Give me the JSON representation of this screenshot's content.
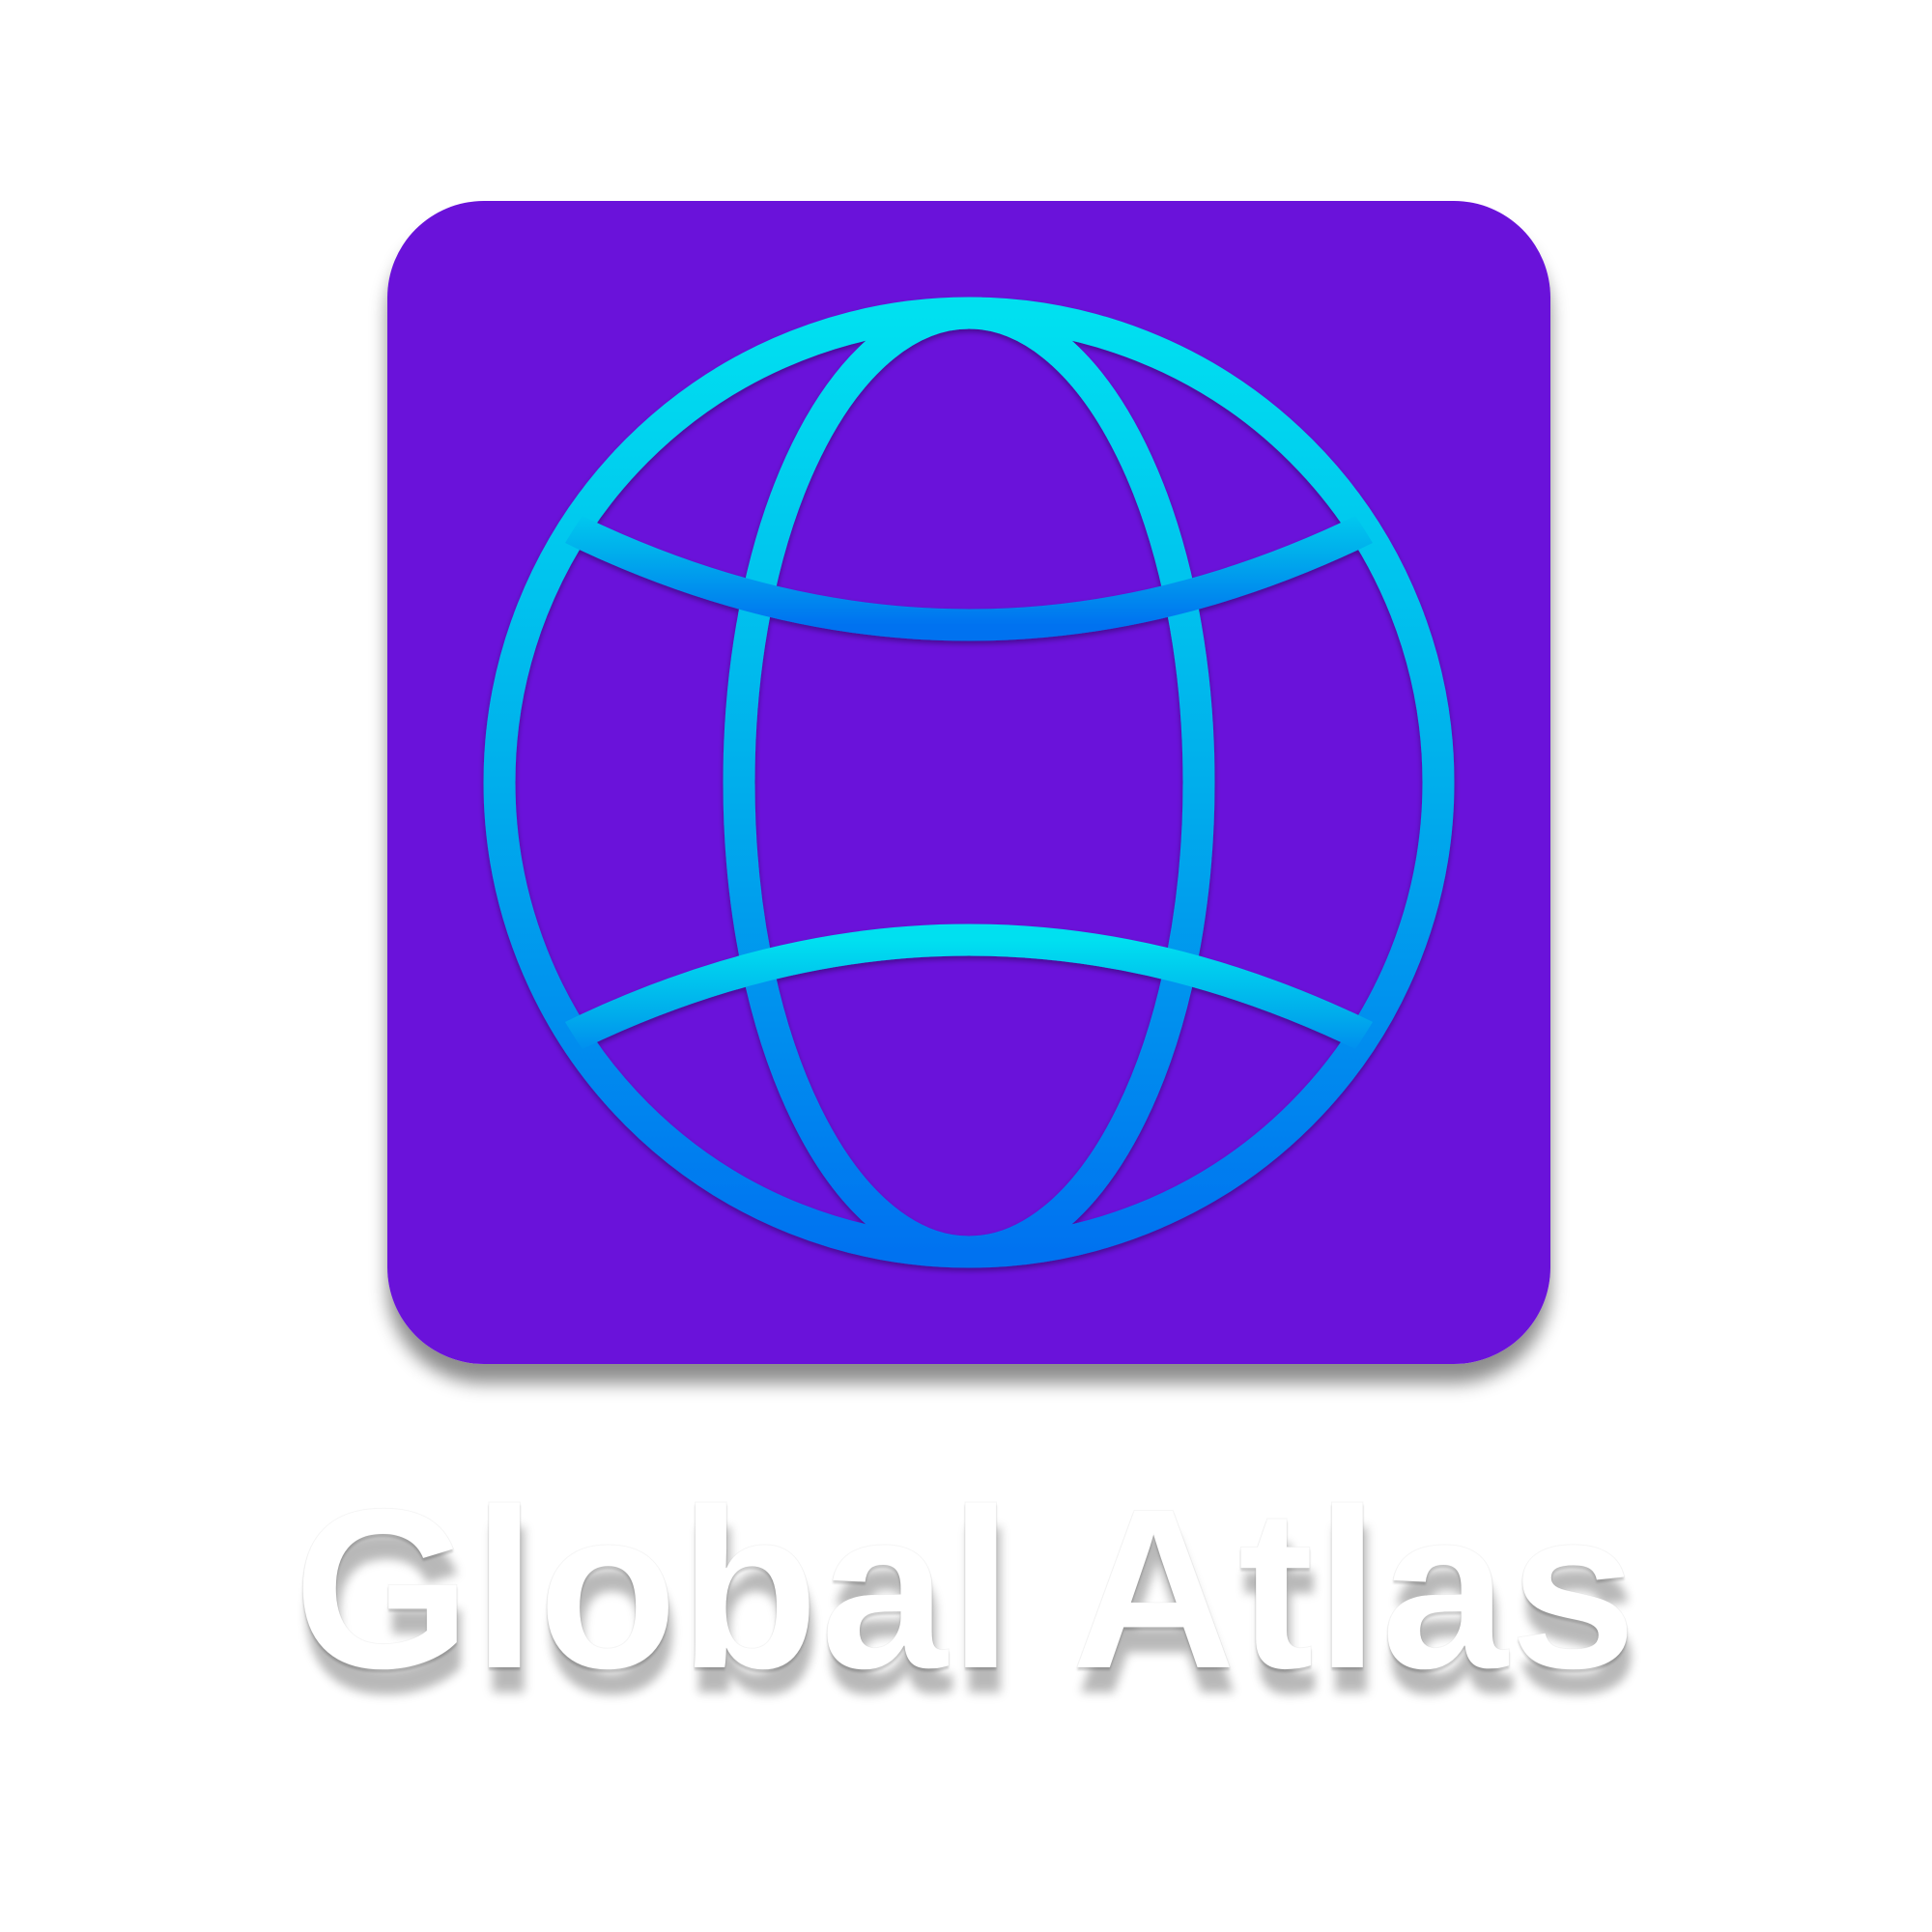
{
  "app": {
    "name": "Global Atlas",
    "icon": "globe-icon"
  },
  "colors": {
    "tile_background": "#6A12DA",
    "globe_gradient_top": "#00E0F0",
    "globe_gradient_mid": "#00AEEC",
    "globe_gradient_bottom": "#0072F0",
    "label": "#FFFFFF",
    "page_background": "#FFFFFF"
  }
}
